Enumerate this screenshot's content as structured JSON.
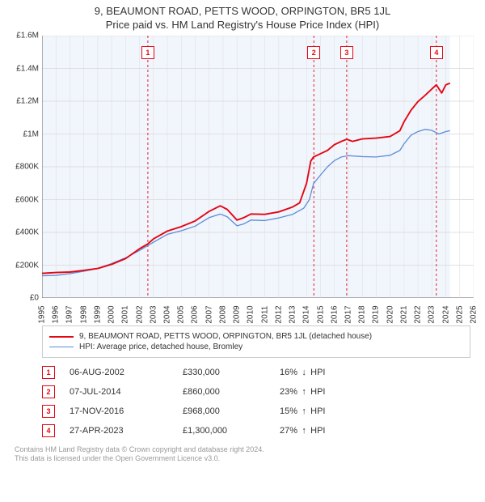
{
  "title_line1": "9, BEAUMONT ROAD, PETTS WOOD, ORPINGTON, BR5 1JL",
  "title_line2": "Price paid vs. HM Land Registry's House Price Index (HPI)",
  "chart": {
    "type": "line",
    "background_color": "#ffffff",
    "plot_band_color": "#f1f5fc",
    "axis_color": "#666666",
    "grid_color": "#e0e0e0",
    "grid_color_x": "#dddddd",
    "xlim": [
      1995,
      2026
    ],
    "ylim": [
      0,
      1600000
    ],
    "ytick_step": 200000,
    "ytick_labels": [
      "£0",
      "£200K",
      "£400K",
      "£600K",
      "£800K",
      "£1M",
      "£1.2M",
      "£1.4M",
      "£1.6M"
    ],
    "xtick_step": 1,
    "xtick_labels": [
      "1995",
      "1996",
      "1997",
      "1998",
      "1999",
      "2000",
      "2001",
      "2002",
      "2003",
      "2004",
      "2005",
      "2006",
      "2007",
      "2008",
      "2009",
      "2010",
      "2011",
      "2012",
      "2013",
      "2014",
      "2015",
      "2016",
      "2017",
      "2018",
      "2019",
      "2020",
      "2021",
      "2022",
      "2023",
      "2024",
      "2025",
      "2026"
    ],
    "plot_band_x": [
      1995,
      2024.3
    ],
    "series": [
      {
        "id": "property",
        "color": "#e30613",
        "width": 1.9,
        "points": [
          [
            1995,
            150000
          ],
          [
            1996,
            155000
          ],
          [
            1997,
            158000
          ],
          [
            1998,
            168000
          ],
          [
            1999,
            180000
          ],
          [
            2000,
            205000
          ],
          [
            2001,
            240000
          ],
          [
            2002,
            300000
          ],
          [
            2002.6,
            330000
          ],
          [
            2003,
            360000
          ],
          [
            2004,
            408000
          ],
          [
            2005,
            435000
          ],
          [
            2006,
            470000
          ],
          [
            2007,
            528000
          ],
          [
            2007.8,
            562000
          ],
          [
            2008.3,
            540000
          ],
          [
            2009,
            475000
          ],
          [
            2009.5,
            490000
          ],
          [
            2010,
            512000
          ],
          [
            2011,
            510000
          ],
          [
            2012,
            525000
          ],
          [
            2013,
            555000
          ],
          [
            2013.5,
            580000
          ],
          [
            2014,
            700000
          ],
          [
            2014.3,
            835000
          ],
          [
            2014.5,
            860000
          ],
          [
            2015,
            880000
          ],
          [
            2015.5,
            900000
          ],
          [
            2016,
            935000
          ],
          [
            2016.5,
            955000
          ],
          [
            2016.88,
            968000
          ],
          [
            2017.3,
            955000
          ],
          [
            2018,
            970000
          ],
          [
            2019,
            975000
          ],
          [
            2020,
            985000
          ],
          [
            2020.7,
            1020000
          ],
          [
            2021,
            1075000
          ],
          [
            2021.5,
            1145000
          ],
          [
            2022,
            1198000
          ],
          [
            2022.5,
            1235000
          ],
          [
            2023,
            1275000
          ],
          [
            2023.32,
            1300000
          ],
          [
            2023.7,
            1250000
          ],
          [
            2024,
            1300000
          ],
          [
            2024.3,
            1310000
          ]
        ]
      },
      {
        "id": "hpi",
        "color": "#5b8dd6",
        "width": 1.3,
        "points": [
          [
            1995,
            135000
          ],
          [
            1996,
            138000
          ],
          [
            1997,
            148000
          ],
          [
            1998,
            163000
          ],
          [
            1999,
            180000
          ],
          [
            2000,
            210000
          ],
          [
            2001,
            245000
          ],
          [
            2002,
            290000
          ],
          [
            2003,
            340000
          ],
          [
            2004,
            388000
          ],
          [
            2005,
            410000
          ],
          [
            2006,
            438000
          ],
          [
            2007,
            490000
          ],
          [
            2007.8,
            512000
          ],
          [
            2008.3,
            495000
          ],
          [
            2009,
            440000
          ],
          [
            2009.5,
            452000
          ],
          [
            2010,
            475000
          ],
          [
            2011,
            472000
          ],
          [
            2012,
            488000
          ],
          [
            2013,
            510000
          ],
          [
            2013.8,
            548000
          ],
          [
            2014.2,
            600000
          ],
          [
            2014.5,
            698000
          ],
          [
            2015,
            750000
          ],
          [
            2015.5,
            800000
          ],
          [
            2016,
            838000
          ],
          [
            2016.5,
            860000
          ],
          [
            2017,
            868000
          ],
          [
            2018,
            862000
          ],
          [
            2019,
            860000
          ],
          [
            2020,
            870000
          ],
          [
            2020.7,
            900000
          ],
          [
            2021,
            940000
          ],
          [
            2021.5,
            993000
          ],
          [
            2022,
            1015000
          ],
          [
            2022.5,
            1028000
          ],
          [
            2023,
            1022000
          ],
          [
            2023.5,
            1000000
          ],
          [
            2024,
            1015000
          ],
          [
            2024.3,
            1020000
          ]
        ]
      }
    ],
    "event_line_color": "#e30613",
    "event_dash": "3,3",
    "events": [
      {
        "n": "1",
        "x": 2002.6
      },
      {
        "n": "2",
        "x": 2014.52
      },
      {
        "n": "3",
        "x": 2016.88
      },
      {
        "n": "4",
        "x": 2023.32
      }
    ],
    "label_fontsize": 10,
    "title_fontsize": 13
  },
  "legend": {
    "items": [
      {
        "label": "9, BEAUMONT ROAD, PETTS WOOD, ORPINGTON, BR5 1JL (detached house)",
        "color": "#e30613",
        "width": 2
      },
      {
        "label": "HPI: Average price, detached house, Bromley",
        "color": "#5b8dd6",
        "width": 1.3
      }
    ]
  },
  "sales": [
    {
      "n": "1",
      "date": "06-AUG-2002",
      "price": "£330,000",
      "pct": "16%",
      "dir": "down",
      "suffix": "HPI"
    },
    {
      "n": "2",
      "date": "07-JUL-2014",
      "price": "£860,000",
      "pct": "23%",
      "dir": "up",
      "suffix": "HPI"
    },
    {
      "n": "3",
      "date": "17-NOV-2016",
      "price": "£968,000",
      "pct": "15%",
      "dir": "up",
      "suffix": "HPI"
    },
    {
      "n": "4",
      "date": "27-APR-2023",
      "price": "£1,300,000",
      "pct": "27%",
      "dir": "up",
      "suffix": "HPI"
    }
  ],
  "footer": {
    "line1": "Contains HM Land Registry data © Crown copyright and database right 2024.",
    "line2": "This data is licensed under the Open Government Licence v3.0."
  }
}
